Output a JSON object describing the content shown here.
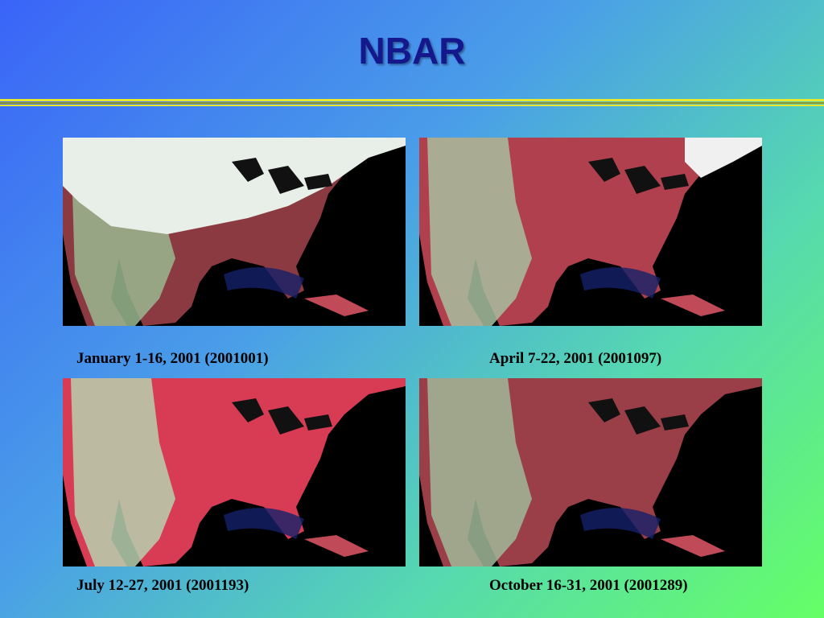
{
  "header": {
    "title": "NBAR"
  },
  "panels": [
    {
      "caption": "January 1-16, 2001 (2001001)"
    },
    {
      "caption": "April 7-22, 2001 (2001097)"
    },
    {
      "caption": "July 12-27, 2001 (2001193)"
    },
    {
      "caption": "October 16-31, 2001 (2001289)"
    }
  ]
}
